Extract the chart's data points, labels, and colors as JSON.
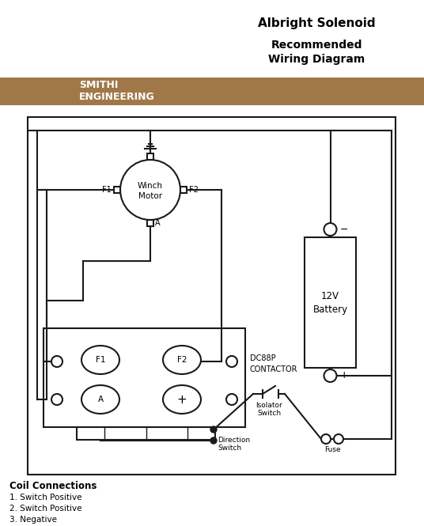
{
  "title": "Albright Solenoid",
  "subtitle_line1": "Recommended",
  "subtitle_line2": "Wiring Diagram",
  "bg_color": "#ffffff",
  "line_color": "#1a1a1a",
  "banner_color": "#a07848",
  "coil_title": "Coil Connections",
  "coil_lines": [
    "1. Switch Positive",
    "2. Switch Positive",
    "3. Negative"
  ],
  "motor_line1": "Winch",
  "motor_line2": "Motor",
  "bat_line1": "12V",
  "bat_line2": "Battery",
  "dc88p_line1": "DC88P",
  "dc88p_line2": "CONTACTOR",
  "isolator_line1": "Isolator",
  "isolator_line2": "Switch",
  "fuse_label": "Fuse",
  "direction_line1": "Direction",
  "direction_line2": "Switch",
  "smithi_text": "SMITHI\nENGINEERING"
}
